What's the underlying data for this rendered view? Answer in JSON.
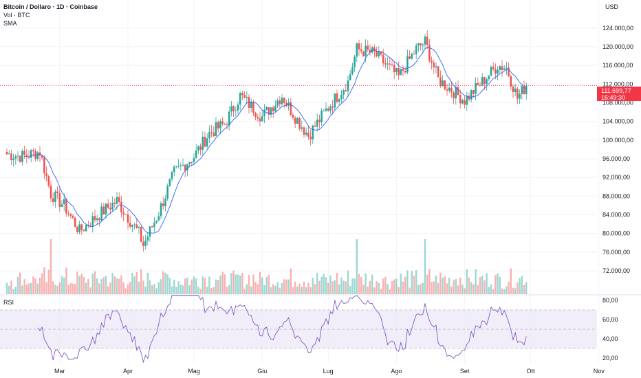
{
  "header": {
    "symbol_line": "Bitcoin / Dollaro · 1D · Coinbase",
    "volume_label": "Vol · BTC",
    "sma_label": "SMA",
    "currency": "USD",
    "rsi_label": "RSI"
  },
  "current_price": {
    "value": "111.699,77",
    "countdown": "16:49:30",
    "price": 111699.77
  },
  "colors": {
    "up": "#26a69a",
    "down": "#ef5350",
    "sma": "#2962ff",
    "rsi_line": "#7e57c2",
    "rsi_band": "#ede7f6",
    "price_line": "#f23645"
  },
  "chart_data": {
    "type": "candlestick",
    "price_axis": {
      "ylim": [
        67000,
        130000
      ],
      "ticks": [
        124000,
        120000,
        116000,
        112000,
        108000,
        104000,
        100000,
        96000,
        92000,
        88000,
        84000,
        80000,
        76000,
        72000
      ],
      "tick_labels": [
        "124.000,00",
        "120.000,00",
        "116.000,00",
        "112.000,00",
        "108.000,00",
        "104.000,00",
        "100.000,00",
        "96.000,00",
        "92.000,00",
        "88.000,00",
        "84.000,00",
        "80.000,00",
        "76.000,00",
        "72.000,00"
      ]
    },
    "x_axis": {
      "months": [
        {
          "label": "Mar",
          "date": "2025-03-01"
        },
        {
          "label": "Apr",
          "date": "2025-04-01"
        },
        {
          "label": "Mag",
          "date": "2025-05-01"
        },
        {
          "label": "Giu",
          "date": "2025-06-01"
        },
        {
          "label": "Lug",
          "date": "2025-07-01"
        },
        {
          "label": "Ago",
          "date": "2025-08-01"
        },
        {
          "label": "Set",
          "date": "2025-09-01"
        },
        {
          "label": "Ott",
          "date": "2025-10-01"
        },
        {
          "label": "Nov",
          "date": "2025-11-01"
        }
      ]
    },
    "rsi_axis": {
      "ylim": [
        15,
        85
      ],
      "ticks": [
        80,
        60,
        40,
        20
      ],
      "tick_labels": [
        "80,00",
        "60,00",
        "40,00",
        "20,00"
      ],
      "bands": [
        30,
        50,
        70
      ]
    },
    "series_start_date": "2025-02-05",
    "close_anchors": [
      {
        "date": "2025-02-05",
        "close": 97000
      },
      {
        "date": "2025-02-12",
        "close": 96500
      },
      {
        "date": "2025-02-20",
        "close": 97500
      },
      {
        "date": "2025-02-25",
        "close": 88500
      },
      {
        "date": "2025-03-03",
        "close": 86000
      },
      {
        "date": "2025-03-10",
        "close": 80500
      },
      {
        "date": "2025-03-20",
        "close": 84500
      },
      {
        "date": "2025-03-27",
        "close": 87000
      },
      {
        "date": "2025-04-06",
        "close": 80000
      },
      {
        "date": "2025-04-08",
        "close": 77500
      },
      {
        "date": "2025-04-15",
        "close": 84500
      },
      {
        "date": "2025-04-22",
        "close": 93000
      },
      {
        "date": "2025-05-01",
        "close": 96500
      },
      {
        "date": "2025-05-08",
        "close": 101500
      },
      {
        "date": "2025-05-15",
        "close": 103500
      },
      {
        "date": "2025-05-22",
        "close": 109500
      },
      {
        "date": "2025-06-01",
        "close": 105000
      },
      {
        "date": "2025-06-10",
        "close": 109500
      },
      {
        "date": "2025-06-16",
        "close": 105000
      },
      {
        "date": "2025-06-22",
        "close": 101000
      },
      {
        "date": "2025-07-01",
        "close": 107000
      },
      {
        "date": "2025-07-10",
        "close": 112500
      },
      {
        "date": "2025-07-14",
        "close": 119500
      },
      {
        "date": "2025-07-22",
        "close": 118500
      },
      {
        "date": "2025-08-02",
        "close": 113500
      },
      {
        "date": "2025-08-10",
        "close": 119500
      },
      {
        "date": "2025-08-14",
        "close": 121000
      },
      {
        "date": "2025-08-20",
        "close": 113000
      },
      {
        "date": "2025-09-01",
        "close": 108500
      },
      {
        "date": "2025-09-08",
        "close": 112000
      },
      {
        "date": "2025-09-16",
        "close": 116000
      },
      {
        "date": "2025-09-20",
        "close": 115500
      },
      {
        "date": "2025-09-25",
        "close": 109000
      },
      {
        "date": "2025-09-29",
        "close": 111700
      }
    ],
    "volume_markers": [
      {
        "date": "2025-02-25",
        "level": "high"
      },
      {
        "date": "2025-07-14",
        "level": "high"
      },
      {
        "date": "2025-08-14",
        "level": "high"
      }
    ],
    "sma_length": 9,
    "rsi_length": 14
  }
}
